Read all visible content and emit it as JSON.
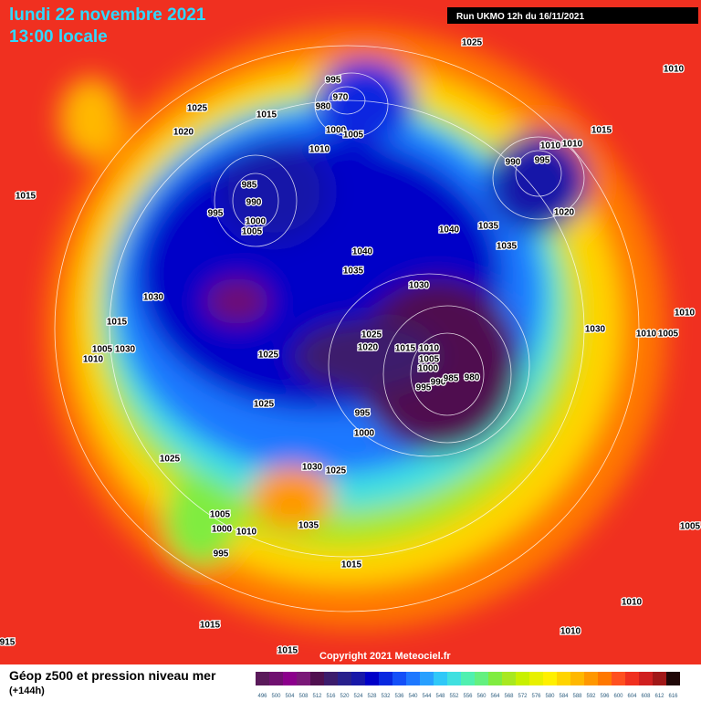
{
  "header": {
    "title": "lundi 22 novembre 2021",
    "subtitle": "13:00 locale",
    "run": "Run UKMO 12h du 16/11/2021"
  },
  "copyright": "Copyright 2021 Meteociel.fr",
  "footer": {
    "title": "Géop z500 et pression niveau mer",
    "lead": "(+144h)"
  },
  "scale": {
    "labels": [
      496,
      500,
      504,
      508,
      512,
      516,
      520,
      524,
      528,
      532,
      536,
      540,
      544,
      548,
      552,
      556,
      560,
      564,
      568,
      572,
      576,
      580,
      584,
      588,
      592,
      596,
      600,
      604,
      608,
      612,
      616
    ],
    "colors": [
      "#5a1a5a",
      "#701070",
      "#8c008c",
      "#7a1878",
      "#501050",
      "#3c1c6c",
      "#28208c",
      "#1818a8",
      "#0000c8",
      "#0828e0",
      "#1450f8",
      "#1e78ff",
      "#28a0ff",
      "#30c8f8",
      "#40e0e0",
      "#50f0b0",
      "#64f080",
      "#80ec40",
      "#a8e820",
      "#c8f000",
      "#e8f000",
      "#fff000",
      "#ffd400",
      "#ffb800",
      "#ff9800",
      "#ff7800",
      "#ff5020",
      "#f03020",
      "#d02020",
      "#a01818",
      "#200808"
    ]
  },
  "pressure_labels": [
    "1025",
    "1010",
    "995",
    "970",
    "980",
    "1025",
    "1015",
    "1020",
    "1015",
    "1000",
    "1005",
    "1010",
    "1010",
    "1010",
    "990",
    "995",
    "1015",
    "985",
    "990",
    "995",
    "1000",
    "1005",
    "1020",
    "1035",
    "1040",
    "1035",
    "1040",
    "1035",
    "1030",
    "1030",
    "1015",
    "1010",
    "1030",
    "1010",
    "1005",
    "1025",
    "1020",
    "1015",
    "1010",
    "1005",
    "1000",
    "995",
    "990",
    "985",
    "980",
    "1005",
    "1030",
    "1010",
    "1025",
    "1025",
    "995",
    "1000",
    "1025",
    "1030",
    "1025",
    "1005",
    "1035",
    "1000",
    "1010",
    "995",
    "1015",
    "1005",
    "1010",
    "1015",
    "1010",
    "1015",
    "915"
  ]
}
